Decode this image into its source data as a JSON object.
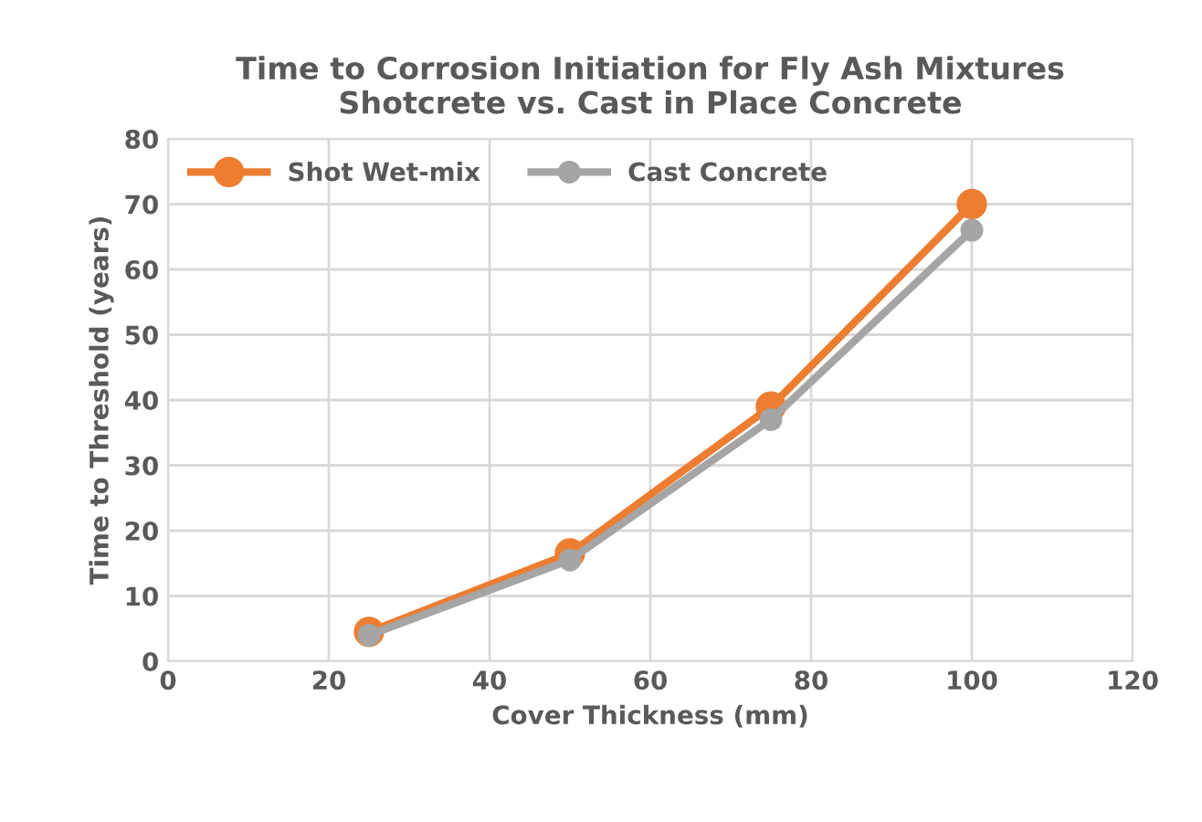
{
  "chart_data": {
    "type": "line",
    "title": "Time to Corrosion Initiation for Fly Ash Mixtures\nShotcrete vs. Cast in Place Concrete",
    "xlabel": "Cover Thickness (mm)",
    "ylabel": "Time to Threshold (years)",
    "x": [
      25,
      50,
      75,
      100
    ],
    "series": [
      {
        "name": "Shot Wet-mix",
        "color": "#ed7d31",
        "values": [
          4.5,
          16.5,
          39,
          70
        ]
      },
      {
        "name": "Cast Concrete",
        "color": "#a5a5a5",
        "values": [
          4,
          15.5,
          37,
          66
        ]
      }
    ],
    "xlim": [
      0,
      120
    ],
    "xticks": [
      0,
      20,
      40,
      60,
      80,
      100,
      120
    ],
    "ylim": [
      0,
      80
    ],
    "yticks": [
      0,
      10,
      20,
      30,
      40,
      50,
      60,
      70,
      80
    ],
    "grid": true,
    "legend": "top left",
    "marker": "circle",
    "line_style": "solid"
  }
}
